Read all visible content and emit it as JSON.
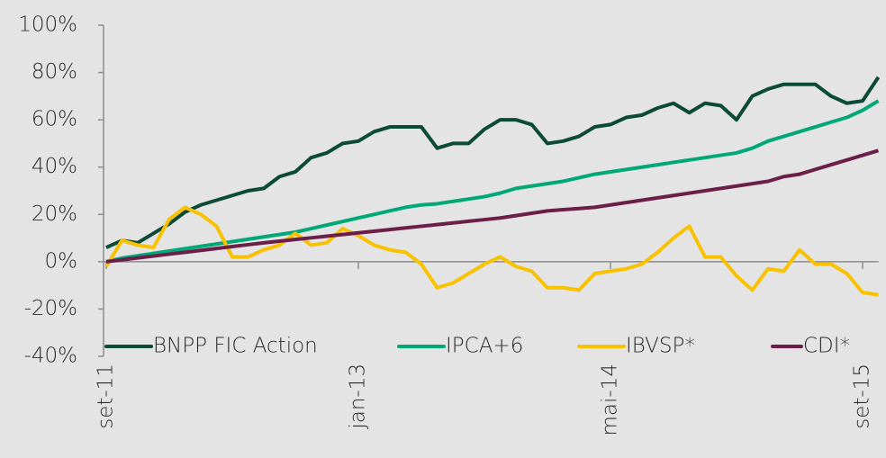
{
  "chart_data": {
    "type": "line",
    "categories": [
      "set-11",
      null,
      null,
      null,
      null,
      null,
      null,
      null,
      null,
      null,
      null,
      null,
      null,
      null,
      null,
      null,
      "jan-13",
      null,
      null,
      null,
      null,
      null,
      null,
      null,
      null,
      null,
      null,
      null,
      null,
      null,
      null,
      null,
      "mai-14",
      null,
      null,
      null,
      null,
      null,
      null,
      null,
      null,
      null,
      null,
      null,
      null,
      null,
      null,
      null,
      "set-15",
      null
    ],
    "series": [
      {
        "name": "BNPP FIC Action",
        "color": "#0b4a36",
        "values": [
          6,
          9,
          8,
          12,
          16,
          21,
          24,
          26,
          28,
          30,
          31,
          36,
          38,
          44,
          46,
          50,
          51,
          55,
          57,
          57,
          57,
          48,
          50,
          50,
          56,
          60,
          60,
          58,
          50,
          51,
          53,
          57,
          58,
          61,
          62,
          65,
          67,
          63,
          67,
          66,
          60,
          70,
          73,
          75,
          75,
          75,
          70,
          67,
          68,
          78
        ]
      },
      {
        "name": "IPCA+6",
        "color": "#00a876",
        "values": [
          0,
          1.5,
          2.5,
          3.5,
          4.5,
          5.5,
          6.5,
          7.5,
          8.5,
          9.5,
          10.5,
          11.5,
          12.5,
          14,
          15.5,
          17,
          18.5,
          20,
          21.5,
          23,
          24,
          24.5,
          25.5,
          26.5,
          27.5,
          29,
          31,
          32,
          33,
          34,
          35.5,
          37,
          38,
          39,
          40,
          41,
          42,
          43,
          44,
          45,
          46,
          48,
          51,
          53,
          55,
          57,
          59,
          61,
          64,
          68
        ]
      },
      {
        "name": "IBVSP*",
        "color": "#f9c200",
        "values": [
          -2,
          9,
          7,
          6,
          18,
          23,
          20,
          15,
          2,
          2,
          5,
          7,
          12,
          7,
          8,
          14,
          11,
          7,
          5,
          4,
          -1,
          -11,
          -9,
          -5,
          -1,
          2,
          -2,
          -4,
          -11,
          -11,
          -12,
          -5,
          -4,
          -3,
          -1,
          4,
          10,
          15,
          2,
          2,
          -6,
          -12,
          -3,
          -4,
          5,
          -1,
          -1,
          -5,
          -13,
          -14
        ]
      },
      {
        "name": "CDI*",
        "color": "#6b1e48",
        "values": [
          0,
          0.8,
          1.6,
          2.4,
          3.2,
          4,
          4.8,
          5.6,
          6.4,
          7.2,
          8,
          8.7,
          9.4,
          10.1,
          10.8,
          11.5,
          12.2,
          12.9,
          13.6,
          14.3,
          15,
          15.7,
          16.4,
          17.1,
          17.8,
          18.5,
          19.5,
          20.5,
          21.5,
          22,
          22.5,
          23,
          24,
          25,
          26,
          27,
          28,
          29,
          30,
          31,
          32,
          33,
          34,
          36,
          37,
          39,
          41,
          43,
          45,
          47
        ]
      }
    ],
    "ylim": [
      -40,
      100
    ],
    "yticks": [
      {
        "value": -40,
        "label": "-40%"
      },
      {
        "value": -20,
        "label": "-20%"
      },
      {
        "value": 0,
        "label": "0%"
      },
      {
        "value": 20,
        "label": "20%"
      },
      {
        "value": 40,
        "label": "40%"
      },
      {
        "value": 60,
        "label": "60%"
      },
      {
        "value": 80,
        "label": "80%"
      },
      {
        "value": 100,
        "label": "100%"
      }
    ]
  }
}
